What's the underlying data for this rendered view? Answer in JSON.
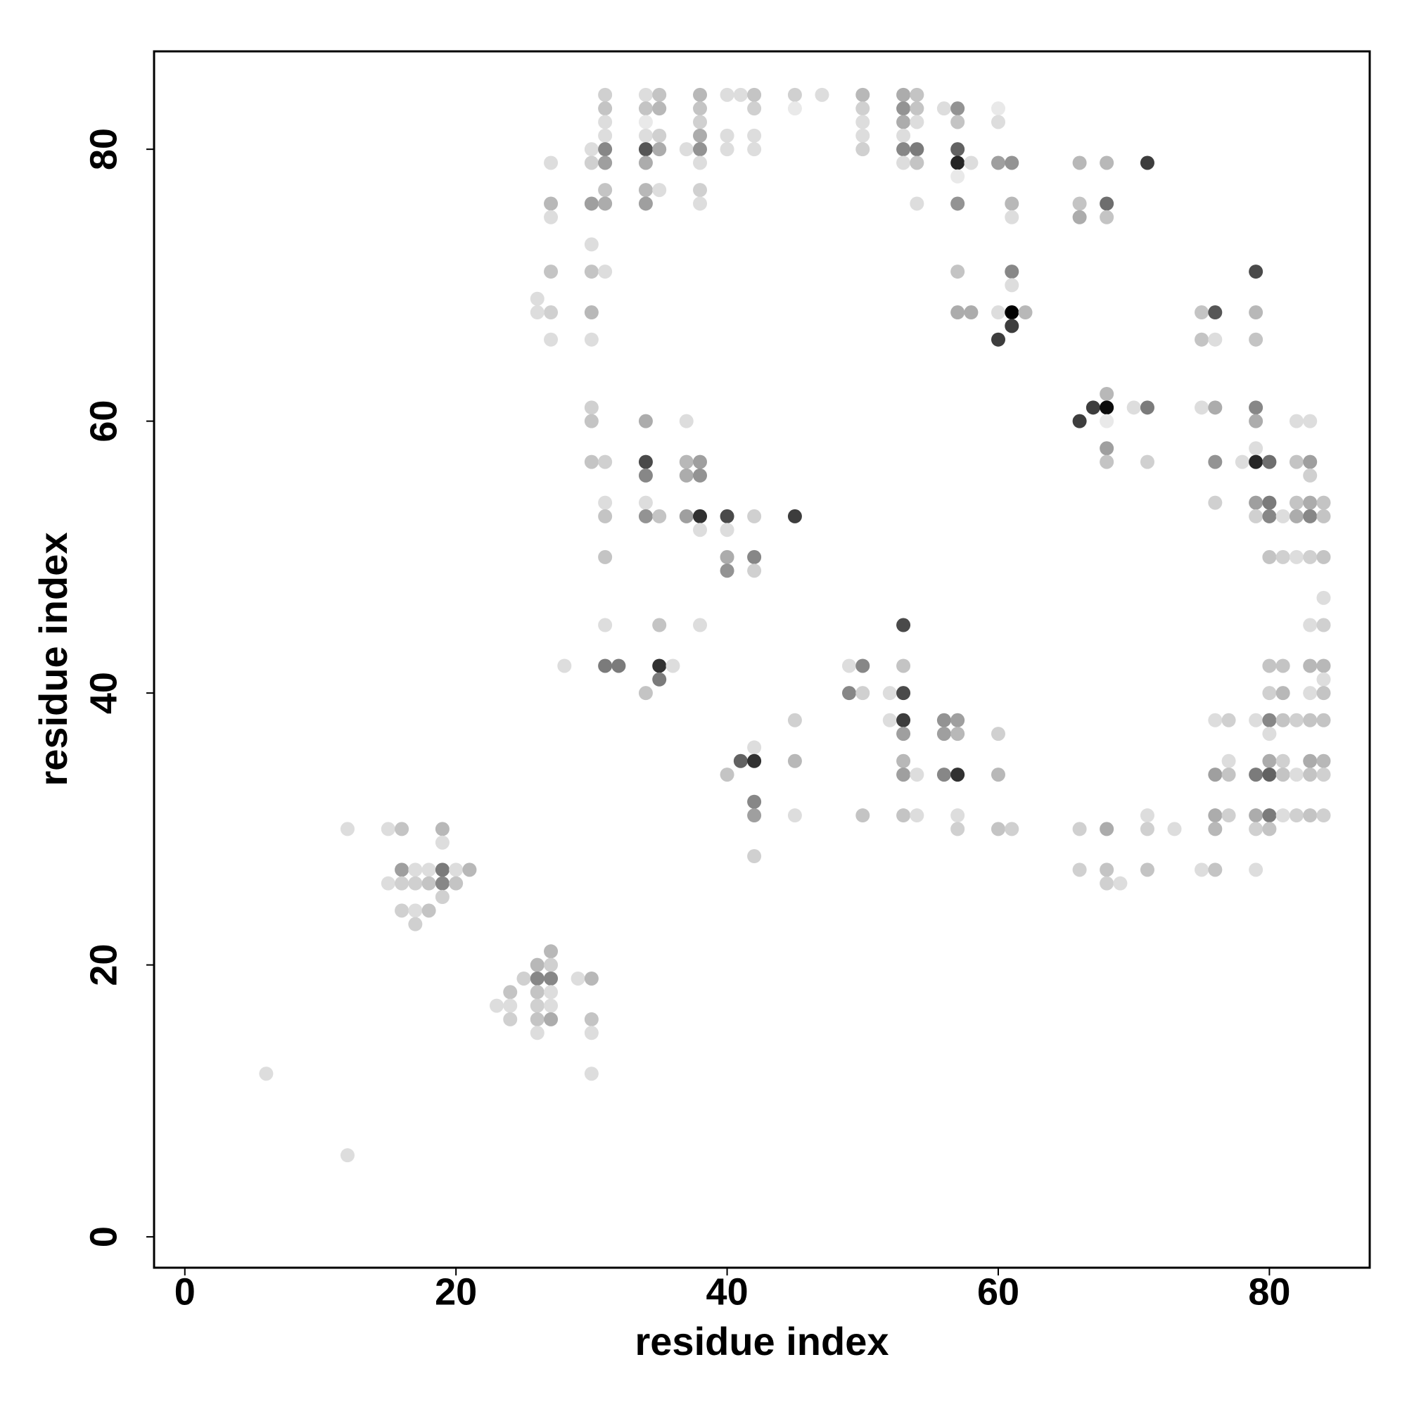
{
  "chart_data": {
    "type": "scatter",
    "xlabel": "residue index",
    "ylabel": "residue index",
    "xlim": [
      -2.27,
      87.4
    ],
    "ylim": [
      -2.27,
      87.2
    ],
    "xticks": [
      0,
      20,
      40,
      60,
      80
    ],
    "yticks": [
      0,
      20,
      40,
      60,
      80
    ],
    "x": [
      6,
      12,
      12,
      15,
      15,
      16,
      16,
      16,
      16,
      17,
      17,
      17,
      17,
      18,
      18,
      18,
      19,
      19,
      19,
      19,
      19,
      20,
      20,
      21,
      23,
      24,
      24,
      24,
      25,
      26,
      26,
      26,
      26,
      26,
      26,
      27,
      27,
      27,
      27,
      27,
      27,
      27,
      27,
      27,
      27,
      27,
      27,
      26,
      26,
      28,
      29,
      30,
      30,
      30,
      30,
      30,
      30,
      30,
      30,
      30,
      30,
      30,
      30,
      30,
      30,
      31,
      31,
      31,
      31,
      31,
      31,
      31,
      31,
      31,
      31,
      31,
      31,
      31,
      31,
      31,
      32,
      34,
      34,
      34,
      34,
      34,
      34,
      34,
      34,
      34,
      34,
      34,
      34,
      34,
      34,
      35,
      35,
      35,
      35,
      35,
      35,
      35,
      35,
      35,
      36,
      37,
      37,
      37,
      37,
      37,
      38,
      38,
      38,
      38,
      38,
      38,
      38,
      38,
      38,
      38,
      38,
      38,
      38,
      40,
      40,
      40,
      40,
      40,
      40,
      40,
      40,
      41,
      41,
      42,
      42,
      42,
      42,
      42,
      42,
      42,
      42,
      42,
      42,
      42,
      42,
      45,
      45,
      45,
      45,
      45,
      45,
      47,
      49,
      49,
      50,
      50,
      50,
      50,
      50,
      50,
      50,
      50,
      52,
      52,
      53,
      53,
      53,
      53,
      53,
      53,
      53,
      53,
      53,
      53,
      53,
      53,
      53,
      53,
      54,
      54,
      54,
      54,
      54,
      54,
      54,
      54,
      56,
      56,
      56,
      56,
      57,
      57,
      57,
      57,
      57,
      57,
      57,
      57,
      57,
      57,
      57,
      57,
      57,
      58,
      58,
      60,
      60,
      60,
      60,
      60,
      60,
      60,
      60,
      61,
      61,
      61,
      61,
      61,
      61,
      61,
      61,
      62,
      66,
      66,
      66,
      66,
      66,
      66,
      67,
      68,
      68,
      68,
      68,
      68,
      68,
      68,
      68,
      68,
      68,
      68,
      69,
      70,
      71,
      71,
      71,
      71,
      71,
      71,
      73,
      75,
      75,
      75,
      75,
      76,
      76,
      76,
      76,
      76,
      76,
      76,
      76,
      76,
      76,
      77,
      77,
      77,
      77,
      78,
      79,
      79,
      79,
      79,
      79,
      79,
      79,
      79,
      79,
      79,
      79,
      79,
      79,
      79,
      80,
      80,
      80,
      80,
      80,
      80,
      80,
      80,
      80,
      80,
      80,
      80,
      81,
      81,
      81,
      81,
      81,
      81,
      81,
      81,
      82,
      82,
      82,
      82,
      82,
      82,
      82,
      82,
      83,
      83,
      83,
      83,
      83,
      83,
      83,
      83,
      83,
      83,
      83,
      83,
      83,
      84,
      84,
      84,
      84,
      84,
      84,
      84,
      84,
      84,
      84,
      84,
      84
    ],
    "y": [
      12,
      30,
      6,
      30,
      26,
      30,
      27,
      26,
      24,
      27,
      26,
      24,
      23,
      27,
      26,
      24,
      30,
      29,
      27,
      26,
      25,
      27,
      26,
      27,
      17,
      18,
      17,
      16,
      19,
      20,
      19,
      18,
      17,
      16,
      15,
      79,
      76,
      75,
      71,
      68,
      66,
      21,
      20,
      19,
      18,
      17,
      16,
      69,
      68,
      42,
      19,
      80,
      79,
      76,
      73,
      71,
      68,
      66,
      61,
      60,
      57,
      19,
      16,
      15,
      12,
      84,
      83,
      82,
      81,
      80,
      79,
      77,
      76,
      71,
      57,
      54,
      53,
      50,
      45,
      42,
      42,
      84,
      83,
      82,
      81,
      80,
      79,
      77,
      76,
      60,
      57,
      56,
      54,
      53,
      40,
      84,
      83,
      81,
      80,
      77,
      53,
      45,
      42,
      41,
      42,
      80,
      60,
      57,
      56,
      53,
      84,
      83,
      82,
      81,
      80,
      79,
      77,
      76,
      57,
      56,
      53,
      52,
      45,
      84,
      81,
      80,
      53,
      52,
      50,
      49,
      34,
      84,
      35,
      84,
      83,
      81,
      80,
      53,
      50,
      49,
      36,
      35,
      32,
      31,
      28,
      84,
      83,
      53,
      38,
      35,
      31,
      84,
      42,
      40,
      84,
      83,
      82,
      81,
      80,
      42,
      40,
      31,
      40,
      38,
      84,
      83,
      82,
      81,
      80,
      79,
      45,
      42,
      40,
      38,
      37,
      35,
      34,
      31,
      84,
      83,
      82,
      80,
      79,
      76,
      34,
      31,
      83,
      38,
      37,
      34,
      83,
      82,
      80,
      79,
      78,
      76,
      71,
      68,
      38,
      37,
      34,
      31,
      30,
      79,
      68,
      83,
      82,
      79,
      68,
      66,
      37,
      34,
      30,
      79,
      76,
      75,
      71,
      70,
      68,
      67,
      30,
      68,
      79,
      76,
      75,
      60,
      30,
      27,
      61,
      79,
      76,
      75,
      62,
      61,
      60,
      58,
      57,
      30,
      27,
      26,
      26,
      61,
      79,
      61,
      57,
      31,
      30,
      27,
      30,
      68,
      66,
      61,
      27,
      68,
      66,
      61,
      57,
      54,
      38,
      34,
      31,
      30,
      27,
      38,
      35,
      34,
      31,
      57,
      71,
      68,
      66,
      61,
      60,
      58,
      57,
      54,
      53,
      38,
      34,
      31,
      30,
      27,
      57,
      54,
      53,
      50,
      42,
      40,
      38,
      37,
      35,
      34,
      31,
      30,
      53,
      50,
      42,
      40,
      38,
      35,
      34,
      31,
      60,
      57,
      54,
      53,
      50,
      38,
      34,
      31,
      60,
      57,
      56,
      54,
      53,
      50,
      45,
      42,
      40,
      38,
      35,
      34,
      31,
      54,
      53,
      50,
      47,
      45,
      42,
      41,
      40,
      38,
      35,
      34,
      31
    ],
    "intensity": [
      0.1,
      0.1,
      0.1,
      0.1,
      0.1,
      0.2,
      0.35,
      0.15,
      0.15,
      0.1,
      0.15,
      0.1,
      0.15,
      0.1,
      0.2,
      0.2,
      0.25,
      0.1,
      0.5,
      0.45,
      0.15,
      0.1,
      0.2,
      0.25,
      0.1,
      0.2,
      0.1,
      0.15,
      0.15,
      0.25,
      0.45,
      0.2,
      0.15,
      0.2,
      0.1,
      0.1,
      0.25,
      0.1,
      0.2,
      0.15,
      0.1,
      0.25,
      0.15,
      0.45,
      0.1,
      0.1,
      0.3,
      0.1,
      0.1,
      0.1,
      0.1,
      0.1,
      0.15,
      0.35,
      0.1,
      0.2,
      0.25,
      0.1,
      0.15,
      0.2,
      0.2,
      0.25,
      0.2,
      0.1,
      0.1,
      0.15,
      0.2,
      0.1,
      0.1,
      0.45,
      0.35,
      0.2,
      0.3,
      0.1,
      0.15,
      0.1,
      0.2,
      0.2,
      0.1,
      0.5,
      0.5,
      0.1,
      0.2,
      0.05,
      0.1,
      0.65,
      0.3,
      0.25,
      0.35,
      0.3,
      0.7,
      0.45,
      0.1,
      0.4,
      0.2,
      0.2,
      0.25,
      0.15,
      0.3,
      0.1,
      0.2,
      0.2,
      0.8,
      0.5,
      0.1,
      0.1,
      0.1,
      0.25,
      0.3,
      0.35,
      0.25,
      0.2,
      0.15,
      0.3,
      0.4,
      0.1,
      0.15,
      0.1,
      0.35,
      0.4,
      0.8,
      0.1,
      0.1,
      0.1,
      0.1,
      0.1,
      0.7,
      0.1,
      0.3,
      0.4,
      0.2,
      0.1,
      0.6,
      0.2,
      0.15,
      0.1,
      0.1,
      0.15,
      0.45,
      0.15,
      0.1,
      0.8,
      0.45,
      0.35,
      0.15,
      0.15,
      0.05,
      0.75,
      0.15,
      0.25,
      0.1,
      0.1,
      0.1,
      0.45,
      0.25,
      0.15,
      0.1,
      0.1,
      0.15,
      0.45,
      0.15,
      0.2,
      0.1,
      0.1,
      0.3,
      0.4,
      0.3,
      0.1,
      0.45,
      0.1,
      0.7,
      0.2,
      0.7,
      0.75,
      0.35,
      0.25,
      0.35,
      0.2,
      0.2,
      0.2,
      0.1,
      0.5,
      0.2,
      0.1,
      0.1,
      0.1,
      0.1,
      0.4,
      0.35,
      0.45,
      0.4,
      0.2,
      0.6,
      0.85,
      0.05,
      0.4,
      0.2,
      0.3,
      0.35,
      0.25,
      0.8,
      0.1,
      0.15,
      0.1,
      0.3,
      0.05,
      0.1,
      0.35,
      0.1,
      0.75,
      0.15,
      0.25,
      0.2,
      0.4,
      0.25,
      0.1,
      0.45,
      0.1,
      1,
      0.75,
      0.15,
      0.25,
      0.25,
      0.2,
      0.3,
      0.75,
      0.15,
      0.15,
      0.75,
      0.25,
      0.55,
      0.2,
      0.25,
      0.95,
      0.05,
      0.35,
      0.2,
      0.3,
      0.2,
      0.15,
      0.1,
      0.1,
      0.75,
      0.5,
      0.15,
      0.1,
      0.15,
      0.2,
      0.1,
      0.2,
      0.2,
      0.1,
      0.1,
      0.65,
      0.1,
      0.3,
      0.4,
      0.15,
      0.1,
      0.35,
      0.3,
      0.25,
      0.2,
      0.15,
      0.1,
      0.2,
      0.15,
      0.1,
      0.7,
      0.25,
      0.2,
      0.45,
      0.3,
      0.1,
      0.85,
      0.35,
      0.15,
      0.1,
      0.5,
      0.3,
      0.15,
      0.1,
      0.55,
      0.5,
      0.45,
      0.2,
      0.2,
      0.15,
      0.45,
      0.1,
      0.3,
      0.6,
      0.5,
      0.2,
      0.1,
      0.15,
      0.2,
      0.25,
      0.2,
      0.15,
      0.2,
      0.1,
      0.1,
      0.2,
      0.2,
      0.3,
      0.1,
      0.15,
      0.1,
      0.15,
      0.1,
      0.35,
      0.15,
      0.3,
      0.45,
      0.15,
      0.1,
      0.25,
      0.1,
      0.2,
      0.3,
      0.2,
      0.2,
      0.2,
      0.2,
      0.2,
      0.1,
      0.15,
      0.25,
      0.1,
      0.2,
      0.2,
      0.25,
      0.15,
      0.15
    ]
  }
}
